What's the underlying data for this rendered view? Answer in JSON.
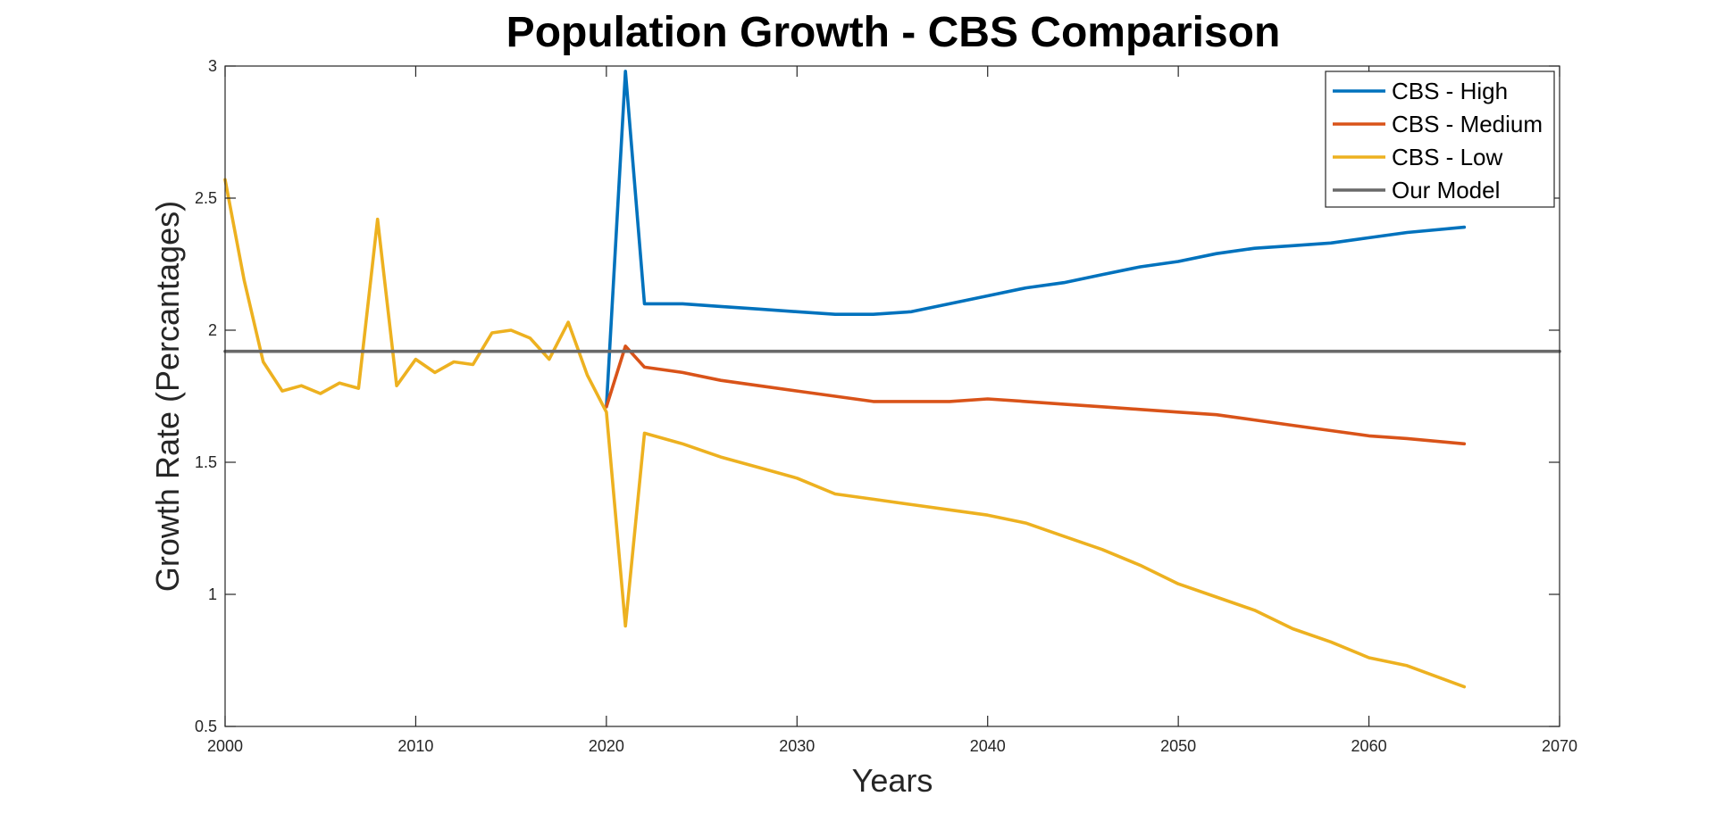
{
  "chart_data": {
    "type": "line",
    "title": "Population Growth - CBS Comparison",
    "xlabel": "Years",
    "ylabel": "Growth Rate (Percantages)",
    "xlim": [
      2000,
      2070
    ],
    "ylim": [
      0.5,
      3
    ],
    "xticks": [
      2000,
      2010,
      2020,
      2030,
      2040,
      2050,
      2060,
      2070
    ],
    "yticks": [
      0.5,
      1,
      1.5,
      2,
      2.5,
      3
    ],
    "xtick_labels": [
      "2000",
      "2010",
      "2020",
      "2030",
      "2040",
      "2050",
      "2060",
      "2070"
    ],
    "ytick_labels": [
      "0.5",
      "1",
      "1.5",
      "2",
      "2.5",
      "3"
    ],
    "grid": false,
    "legend_position": "top-right",
    "legend": [
      "CBS - High",
      "CBS - Medium",
      "CBS - Low",
      "Our Model"
    ],
    "series": [
      {
        "name": "CBS - High",
        "color": "#0072BD",
        "x": [
          2020,
          2021,
          2022,
          2024,
          2026,
          2028,
          2030,
          2032,
          2034,
          2036,
          2038,
          2040,
          2042,
          2044,
          2046,
          2048,
          2050,
          2052,
          2054,
          2056,
          2058,
          2060,
          2062,
          2065
        ],
        "y": [
          1.71,
          2.98,
          2.1,
          2.1,
          2.09,
          2.08,
          2.07,
          2.06,
          2.06,
          2.07,
          2.1,
          2.13,
          2.16,
          2.18,
          2.21,
          2.24,
          2.26,
          2.29,
          2.31,
          2.32,
          2.33,
          2.35,
          2.37,
          2.39
        ]
      },
      {
        "name": "CBS - Medium",
        "color": "#D95319",
        "x": [
          2020,
          2021,
          2022,
          2024,
          2026,
          2028,
          2030,
          2032,
          2034,
          2036,
          2038,
          2040,
          2042,
          2044,
          2046,
          2048,
          2050,
          2052,
          2054,
          2056,
          2058,
          2060,
          2062,
          2065
        ],
        "y": [
          1.71,
          1.94,
          1.86,
          1.84,
          1.81,
          1.79,
          1.77,
          1.75,
          1.73,
          1.73,
          1.73,
          1.74,
          1.73,
          1.72,
          1.71,
          1.7,
          1.69,
          1.68,
          1.66,
          1.64,
          1.62,
          1.6,
          1.59,
          1.57
        ]
      },
      {
        "name": "CBS - Low",
        "color": "#EDB120",
        "x": [
          2000,
          2001,
          2002,
          2003,
          2004,
          2005,
          2006,
          2007,
          2008,
          2009,
          2010,
          2011,
          2012,
          2013,
          2014,
          2015,
          2016,
          2017,
          2018,
          2019,
          2020,
          2021,
          2022,
          2024,
          2026,
          2028,
          2030,
          2032,
          2034,
          2036,
          2038,
          2040,
          2042,
          2044,
          2046,
          2048,
          2050,
          2052,
          2054,
          2056,
          2058,
          2060,
          2062,
          2065
        ],
        "y": [
          2.57,
          2.19,
          1.88,
          1.77,
          1.79,
          1.76,
          1.8,
          1.78,
          2.42,
          1.79,
          1.89,
          1.84,
          1.88,
          1.87,
          1.99,
          2.0,
          1.97,
          1.89,
          2.03,
          1.83,
          1.69,
          0.88,
          1.61,
          1.57,
          1.52,
          1.48,
          1.44,
          1.38,
          1.36,
          1.34,
          1.32,
          1.3,
          1.27,
          1.22,
          1.17,
          1.11,
          1.04,
          0.99,
          0.94,
          0.87,
          0.82,
          0.76,
          0.73,
          0.65
        ]
      },
      {
        "name": "Our Model",
        "color": "#696969",
        "x": [
          2000,
          2070
        ],
        "y": [
          1.92,
          1.92
        ]
      }
    ]
  }
}
